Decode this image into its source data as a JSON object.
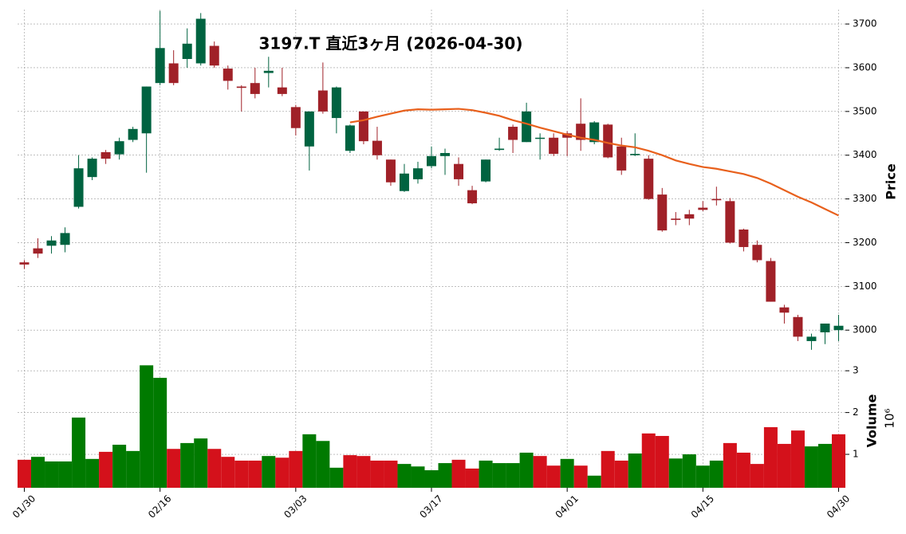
{
  "chart_data": {
    "type": "candlestick",
    "title": "3197.T  直近3ヶ月  (2026-04-30)",
    "categories": [
      "01/30",
      null,
      null,
      null,
      null,
      null,
      null,
      null,
      null,
      null,
      "02/16",
      null,
      null,
      null,
      null,
      null,
      null,
      null,
      null,
      null,
      "03/03",
      null,
      null,
      null,
      null,
      null,
      null,
      null,
      null,
      null,
      "03/17",
      null,
      null,
      null,
      null,
      null,
      null,
      null,
      null,
      null,
      "04/01",
      null,
      null,
      null,
      null,
      null,
      null,
      null,
      null,
      null,
      "04/15",
      null,
      null,
      null,
      null,
      null,
      null,
      null,
      null,
      null,
      "04/30"
    ],
    "open": [
      3155,
      3187,
      3193,
      3195,
      3282,
      3350,
      3407,
      3402,
      3435,
      3450,
      3565,
      3610,
      3620,
      3610,
      3650,
      3598,
      3557,
      3565,
      3588,
      3555,
      3510,
      3420,
      3548,
      3485,
      3410,
      3500,
      3433,
      3390,
      3318,
      3345,
      3375,
      3398,
      3380,
      3320,
      3340,
      3412,
      3465,
      3430,
      3438,
      3440,
      3450,
      3472,
      3430,
      3470,
      3420,
      3400,
      3392,
      3310,
      3255,
      3265,
      3280,
      3300,
      3295,
      3230,
      3195,
      3158,
      3052,
      3030,
      2975,
      2995,
      3000
    ],
    "high": [
      3160,
      3210,
      3215,
      3235,
      3400,
      3395,
      3412,
      3440,
      3465,
      3557,
      3730,
      3640,
      3690,
      3725,
      3660,
      3605,
      3560,
      3600,
      3625,
      3600,
      3515,
      3500,
      3612,
      3557,
      3470,
      3500,
      3465,
      3390,
      3380,
      3385,
      3420,
      3415,
      3395,
      3330,
      3390,
      3440,
      3470,
      3520,
      3450,
      3450,
      3455,
      3530,
      3478,
      3472,
      3440,
      3450,
      3400,
      3325,
      3270,
      3275,
      3295,
      3328,
      3302,
      3232,
      3205,
      3165,
      3058,
      3035,
      2992,
      3015,
      3035
    ],
    "low": [
      3140,
      3165,
      3175,
      3178,
      3278,
      3343,
      3380,
      3390,
      3430,
      3360,
      3560,
      3560,
      3600,
      3605,
      3600,
      3550,
      3500,
      3530,
      3555,
      3535,
      3445,
      3365,
      3495,
      3450,
      3405,
      3425,
      3390,
      3330,
      3316,
      3335,
      3370,
      3355,
      3330,
      3288,
      3338,
      3410,
      3405,
      3430,
      3390,
      3398,
      3398,
      3410,
      3425,
      3393,
      3355,
      3398,
      3298,
      3225,
      3240,
      3240,
      3272,
      3285,
      3198,
      3180,
      3155,
      3065,
      3015,
      2975,
      2955,
      2968,
      2975
    ],
    "close": [
      3150,
      3175,
      3205,
      3222,
      3370,
      3392,
      3392,
      3432,
      3460,
      3557,
      3645,
      3565,
      3655,
      3712,
      3605,
      3570,
      3554,
      3540,
      3593,
      3540,
      3462,
      3500,
      3500,
      3555,
      3468,
      3432,
      3400,
      3338,
      3358,
      3370,
      3398,
      3405,
      3345,
      3290,
      3390,
      3415,
      3435,
      3500,
      3440,
      3403,
      3440,
      3435,
      3475,
      3395,
      3365,
      3403,
      3300,
      3228,
      3252,
      3255,
      3275,
      3297,
      3200,
      3190,
      3160,
      3065,
      3040,
      2985,
      2985,
      3015,
      3010
    ],
    "up_color": "#006340",
    "down_color": "#a02128",
    "ylim": [
      2953,
      3733
    ],
    "yticks": [
      3000,
      3100,
      3200,
      3300,
      3400,
      3500,
      3600,
      3700
    ],
    "ylabel": "Price",
    "grid": true,
    "ma": {
      "color": "#e8601c",
      "values": [
        null,
        null,
        null,
        null,
        null,
        null,
        null,
        null,
        null,
        null,
        null,
        null,
        null,
        null,
        null,
        null,
        null,
        null,
        null,
        null,
        null,
        null,
        null,
        null,
        3475,
        3480,
        3488,
        3495,
        3502,
        3505,
        3504,
        3505,
        3506,
        3503,
        3497,
        3490,
        3480,
        3472,
        3463,
        3455,
        3447,
        3440,
        3435,
        3428,
        3422,
        3418,
        3410,
        3400,
        3388,
        3380,
        3373,
        3369,
        3363,
        3357,
        3348,
        3335,
        3320,
        3305,
        3292,
        3277,
        3262
      ]
    },
    "volume": {
      "ylabel": "Volume",
      "offset_label": "10⁶",
      "ylim": [
        0.2,
        3.48
      ],
      "yticks": [
        1,
        2,
        3
      ],
      "values": [
        0.87,
        0.94,
        0.83,
        0.83,
        1.88,
        0.89,
        1.06,
        1.23,
        1.08,
        3.13,
        2.83,
        1.13,
        1.27,
        1.38,
        1.13,
        0.94,
        0.85,
        0.85,
        0.96,
        0.92,
        1.08,
        1.48,
        1.32,
        0.68,
        0.98,
        0.96,
        0.85,
        0.85,
        0.77,
        0.71,
        0.62,
        0.79,
        0.87,
        0.66,
        0.85,
        0.79,
        0.79,
        1.04,
        0.96,
        0.73,
        0.89,
        0.73,
        0.49,
        1.08,
        0.85,
        1.02,
        1.5,
        1.44,
        0.9,
        1.0,
        0.73,
        0.85,
        1.27,
        1.04,
        0.77,
        1.65,
        1.25,
        1.57,
        1.19,
        1.25,
        1.48
      ],
      "colors": [
        "#d4111b",
        "#007a00",
        "#007a00",
        "#007a00",
        "#007a00",
        "#007a00",
        "#d4111b",
        "#007a00",
        "#007a00",
        "#007a00",
        "#007a00",
        "#d4111b",
        "#007a00",
        "#007a00",
        "#d4111b",
        "#d4111b",
        "#d4111b",
        "#d4111b",
        "#007a00",
        "#d4111b",
        "#d4111b",
        "#007a00",
        "#007a00",
        "#007a00",
        "#d4111b",
        "#d4111b",
        "#d4111b",
        "#d4111b",
        "#007a00",
        "#007a00",
        "#007a00",
        "#007a00",
        "#d4111b",
        "#d4111b",
        "#007a00",
        "#007a00",
        "#007a00",
        "#007a00",
        "#d4111b",
        "#d4111b",
        "#007a00",
        "#d4111b",
        "#007a00",
        "#d4111b",
        "#d4111b",
        "#007a00",
        "#d4111b",
        "#d4111b",
        "#007a00",
        "#007a00",
        "#007a00",
        "#007a00",
        "#d4111b",
        "#d4111b",
        "#d4111b",
        "#d4111b",
        "#d4111b",
        "#d4111b",
        "#007a00",
        "#007a00",
        "#d4111b"
      ]
    }
  }
}
